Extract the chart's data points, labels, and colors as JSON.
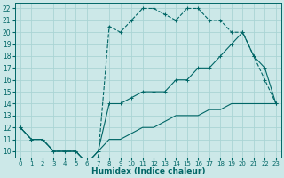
{
  "xlabel": "Humidex (Indice chaleur)",
  "bg_color": "#cce8e8",
  "grid_color": "#aad4d4",
  "line_color": "#006666",
  "xlim": [
    -0.5,
    23.5
  ],
  "ylim": [
    9.5,
    22.5
  ],
  "xticks": [
    0,
    1,
    2,
    3,
    4,
    5,
    6,
    7,
    8,
    9,
    10,
    11,
    12,
    13,
    14,
    15,
    16,
    17,
    18,
    19,
    20,
    21,
    22,
    23
  ],
  "yticks": [
    10,
    11,
    12,
    13,
    14,
    15,
    16,
    17,
    18,
    19,
    20,
    21,
    22
  ],
  "curve1_x": [
    0,
    1,
    2,
    3,
    4,
    5,
    6,
    7,
    8,
    9,
    10,
    11,
    12,
    13,
    14,
    15,
    16,
    17,
    18,
    19,
    20,
    21,
    22,
    23
  ],
  "curve1_y": [
    12,
    11,
    11,
    10,
    10,
    10,
    9,
    9.5,
    20.5,
    20,
    21,
    22,
    22,
    21.5,
    21,
    22,
    22,
    21,
    21,
    20,
    20,
    18,
    16,
    14
  ],
  "curve2_x": [
    0,
    1,
    2,
    3,
    4,
    5,
    6,
    7,
    8,
    9,
    10,
    11,
    12,
    13,
    14,
    15,
    16,
    17,
    18,
    19,
    20,
    21,
    22,
    23
  ],
  "curve2_y": [
    12,
    11,
    11,
    10,
    10,
    10,
    9,
    10,
    14,
    14,
    14.5,
    15,
    15,
    15,
    16,
    16,
    17,
    17,
    18,
    19,
    20,
    18,
    17,
    14
  ],
  "curve3_x": [
    0,
    1,
    2,
    3,
    4,
    5,
    6,
    7,
    8,
    9,
    10,
    11,
    12,
    13,
    14,
    15,
    16,
    17,
    18,
    19,
    20,
    21,
    22,
    23
  ],
  "curve3_y": [
    12,
    11,
    11,
    10,
    10,
    10,
    9,
    10,
    11,
    11,
    11.5,
    12,
    12,
    12.5,
    13,
    13,
    13,
    13.5,
    13.5,
    14,
    14,
    14,
    14,
    14
  ]
}
